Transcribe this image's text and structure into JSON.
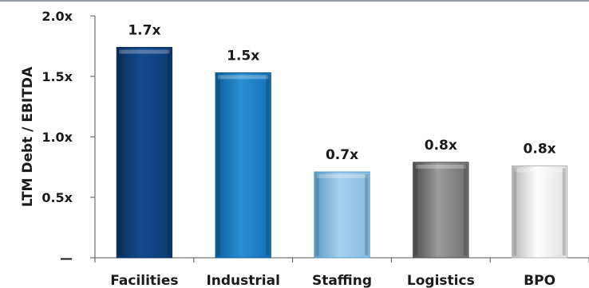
{
  "chart_data": {
    "type": "bar",
    "ylabel": "LTM Debt / EBITDA",
    "categories": [
      "Facilities",
      "Industrial",
      "Staffing",
      "Logistics",
      "BPO"
    ],
    "values": [
      1.74,
      1.53,
      0.71,
      0.79,
      0.76
    ],
    "data_labels": [
      "1.7x",
      "1.5x",
      "0.7x",
      "0.8x",
      "0.8x"
    ],
    "ylim": [
      0,
      2.0
    ],
    "y_ticks": [
      0,
      0.5,
      1.0,
      1.5,
      2.0
    ],
    "y_tick_labels": [
      "—",
      "0.5x",
      "1.0x",
      "1.5x",
      "2.0x"
    ],
    "grid": false,
    "colors": {
      "Facilities": [
        "#0a2f5c",
        "#134a8f",
        "#0d3a73"
      ],
      "Industrial": [
        "#0c5d99",
        "#2a8fd3",
        "#1670b6"
      ],
      "Staffing": [
        "#5a9ac6",
        "#a8d0ee",
        "#86bbe2"
      ],
      "Logistics": [
        "#4e4e4e",
        "#9b9b9b",
        "#707070"
      ],
      "BPO": [
        "#b5b5b5",
        "#ffffff",
        "#e0e0e0"
      ]
    }
  }
}
